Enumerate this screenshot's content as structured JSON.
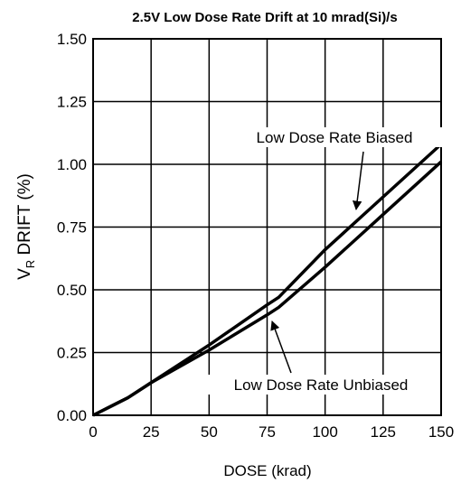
{
  "chart_data": {
    "type": "line",
    "title": "2.5V Low Dose Rate Drift at 10 mrad(Si)/s",
    "x_label": "DOSE (krad)",
    "y_label": {
      "main": "V",
      "sub": "R",
      "rest": " DRIFT (%)"
    },
    "xlim": [
      0,
      150
    ],
    "xticks": [
      0,
      25,
      50,
      75,
      100,
      125,
      150
    ],
    "ylim": [
      0,
      1.5
    ],
    "yticks": [
      {
        "value": 0,
        "label": "0.00"
      },
      {
        "value": 0.25,
        "label": "0.25"
      },
      {
        "value": 0.5,
        "label": "0.50"
      },
      {
        "value": 0.75,
        "label": "0.75"
      },
      {
        "value": 1,
        "label": "1.00"
      },
      {
        "value": 1.25,
        "label": "1.25"
      },
      {
        "value": 1.5,
        "label": "1.50"
      }
    ],
    "grid": true,
    "series": [
      {
        "name": "Low Dose Rate Biased",
        "color": "#000000",
        "x": [
          0,
          15,
          25,
          50,
          75,
          80,
          100,
          125,
          150
        ],
        "values": [
          0,
          0.07,
          0.13,
          0.28,
          0.44,
          0.47,
          0.66,
          0.87,
          1.08
        ]
      },
      {
        "name": "Low Dose Rate Unbiased",
        "color": "#000000",
        "x": [
          0,
          15,
          25,
          50,
          75,
          80,
          100,
          125,
          150
        ],
        "values": [
          0,
          0.07,
          0.13,
          0.26,
          0.4,
          0.43,
          0.59,
          0.8,
          1.01
        ]
      }
    ]
  }
}
